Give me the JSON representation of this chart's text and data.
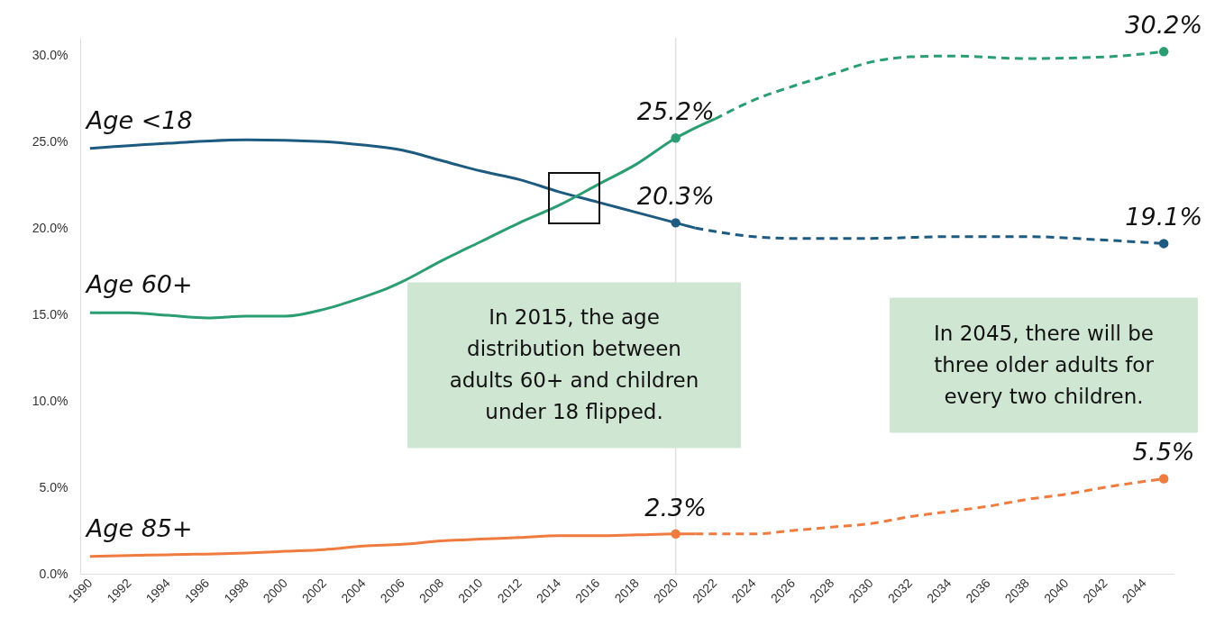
{
  "chart_data": {
    "type": "line",
    "xlim": [
      1989.5,
      2045.5
    ],
    "ylim": [
      0,
      31
    ],
    "xticks": [
      1990,
      1992,
      1994,
      1996,
      1998,
      2000,
      2002,
      2004,
      2006,
      2008,
      2010,
      2012,
      2014,
      2016,
      2018,
      2020,
      2022,
      2024,
      2026,
      2028,
      2030,
      2032,
      2034,
      2036,
      2038,
      2040,
      2042,
      2044
    ],
    "yticks": [
      {
        "value": 0,
        "label": "0.0%"
      },
      {
        "value": 5,
        "label": "5.0%"
      },
      {
        "value": 10,
        "label": "10.0%"
      },
      {
        "value": 15,
        "label": "15.0%"
      },
      {
        "value": 20,
        "label": "20.0%"
      },
      {
        "value": 25,
        "label": "25.0%"
      },
      {
        "value": 30,
        "label": "30.0%"
      }
    ],
    "series": [
      {
        "name": "Age <18",
        "type": "line",
        "color": "#1d5a80",
        "line_style": "solid",
        "x": [
          1990,
          1994,
          1998,
          2002,
          2004,
          2006,
          2008,
          2010,
          2012,
          2014,
          2016,
          2018,
          2020,
          2021
        ],
        "values": [
          24.6,
          24.9,
          25.1,
          25.0,
          24.8,
          24.5,
          23.9,
          23.3,
          22.8,
          22.1,
          21.5,
          20.9,
          20.3,
          20.0
        ]
      },
      {
        "type": "line",
        "color": "#1d5a80",
        "line_style": "dashed",
        "x": [
          2021,
          2024,
          2026,
          2030,
          2034,
          2038,
          2042,
          2045
        ],
        "values": [
          20.0,
          19.5,
          19.4,
          19.4,
          19.5,
          19.5,
          19.3,
          19.1
        ]
      },
      {
        "name": "Age 60+",
        "type": "line",
        "color": "#2a9d73",
        "line_style": "solid",
        "x": [
          1990,
          1992,
          1994,
          1996,
          1998,
          2000,
          2002,
          2004,
          2005,
          2006,
          2008,
          2010,
          2012,
          2014,
          2016,
          2018,
          2020,
          2022
        ],
        "values": [
          15.1,
          15.1,
          14.95,
          14.8,
          14.9,
          14.9,
          15.3,
          16.0,
          16.4,
          16.9,
          18.1,
          19.2,
          20.3,
          21.3,
          22.5,
          23.7,
          25.2,
          26.3
        ]
      },
      {
        "type": "line",
        "color": "#2a9d73",
        "line_style": "dashed",
        "x": [
          2022,
          2024,
          2026,
          2028,
          2030,
          2032,
          2034,
          2038,
          2042,
          2045
        ],
        "values": [
          26.3,
          27.4,
          28.2,
          28.9,
          29.6,
          29.9,
          29.95,
          29.8,
          29.9,
          30.2
        ]
      },
      {
        "name": "Age 85+",
        "type": "line",
        "color": "#f07b3f",
        "line_style": "solid",
        "x": [
          1990,
          1994,
          1998,
          2000,
          2002,
          2004,
          2006,
          2008,
          2010,
          2012,
          2014,
          2016,
          2018,
          2020,
          2021
        ],
        "values": [
          1.0,
          1.1,
          1.2,
          1.3,
          1.4,
          1.6,
          1.7,
          1.9,
          2.0,
          2.1,
          2.2,
          2.2,
          2.25,
          2.3,
          2.3
        ]
      },
      {
        "type": "line",
        "color": "#f07b3f",
        "line_style": "dashed",
        "x": [
          2021,
          2024,
          2026,
          2028,
          2030,
          2032,
          2034,
          2036,
          2038,
          2040,
          2042,
          2045
        ],
        "values": [
          2.3,
          2.3,
          2.5,
          2.7,
          2.9,
          3.3,
          3.6,
          3.9,
          4.3,
          4.6,
          5.0,
          5.5
        ]
      },
      {
        "type": "scatter",
        "marker": "circle",
        "color": "#1d5a80",
        "x": [
          2020,
          2045
        ],
        "values": [
          20.3,
          19.1
        ],
        "value_labels": [
          "20.3%",
          "19.1%"
        ]
      },
      {
        "type": "scatter",
        "marker": "circle",
        "color": "#2a9d73",
        "x": [
          2020,
          2045
        ],
        "values": [
          25.2,
          30.2
        ],
        "value_labels": [
          "25.2%",
          "30.2%"
        ]
      },
      {
        "type": "scatter",
        "marker": "circle",
        "color": "#f07b3f",
        "x": [
          2020,
          2045
        ],
        "values": [
          2.3,
          5.5
        ],
        "value_labels": [
          "2.3%",
          "5.5%"
        ]
      }
    ],
    "ref_lines": [
      {
        "axis": "x",
        "value": 2020,
        "color": "#e0e0e0"
      }
    ],
    "annotations": [
      "In 2015, the age distribution between adults 60+ and children under 18 flipped.",
      "In 2045, there will be three older adults for every two children."
    ]
  }
}
